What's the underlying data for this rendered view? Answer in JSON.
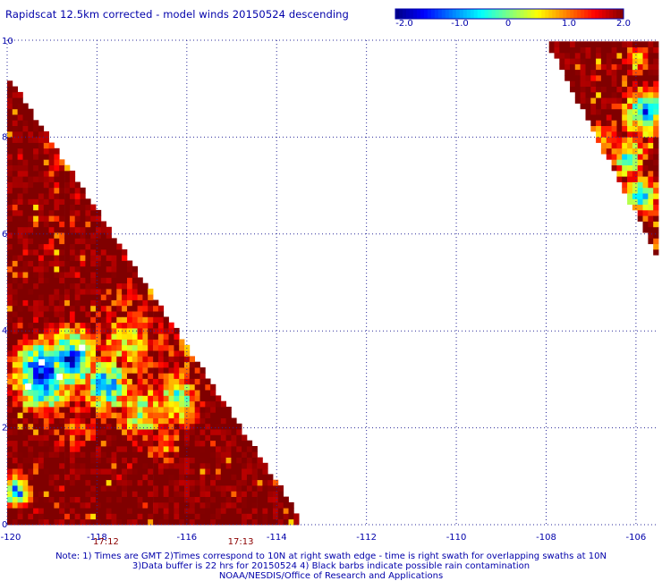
{
  "title": "Rapidscat 12.5km corrected - model winds 20150524 descending",
  "colorbar": {
    "ticks": [
      -2.0,
      -1.0,
      0,
      1.0,
      2.0
    ],
    "tick_labels": [
      "-2.0",
      "-1.0",
      "0",
      "1.0",
      "2.0"
    ],
    "colors": [
      "#000080",
      "#0000ff",
      "#0080ff",
      "#00ffff",
      "#80ff80",
      "#ffff00",
      "#ff8000",
      "#ff0000",
      "#800000"
    ]
  },
  "chart_data": {
    "type": "heatmap",
    "title": "Rapidscat 12.5km corrected - model winds 20150524 descending",
    "x_tick_labels": [
      "-120",
      "-118",
      "-116",
      "-114",
      "-112",
      "-110",
      "-108",
      "-106"
    ],
    "y_tick_labels": [
      "0",
      "2",
      "4",
      "6",
      "8",
      "10"
    ],
    "xlim": [
      -120,
      -105.5
    ],
    "ylim": [
      0,
      10
    ],
    "grid": true,
    "colorbar_range": [
      -2.0,
      2.0
    ],
    "time_labels": [
      {
        "text": "17:12",
        "lon": -117.8
      },
      {
        "text": "17:13",
        "lon": -114.8
      }
    ],
    "swaths": [
      {
        "description_lon_range": [
          -120,
          -113.5
        ],
        "lat_range": [
          0,
          9.3
        ],
        "edge_polygon": [
          [
            -120,
            0
          ],
          [
            -113.5,
            0
          ],
          [
            -113.5,
            0.2
          ],
          [
            -120,
            9.3
          ]
        ],
        "regions": [
          {
            "center": [
              -119.2,
              3.1
            ],
            "radius": 0.9,
            "value": -2.0
          },
          {
            "center": [
              -118.6,
              3.4
            ],
            "radius": 0.8,
            "value": -1.6
          },
          {
            "center": [
              -117.8,
              2.9
            ],
            "radius": 0.7,
            "value": -1.2
          },
          {
            "center": [
              -117.3,
              3.8
            ],
            "radius": 0.9,
            "value": 0.4
          },
          {
            "center": [
              -117.0,
              2.3
            ],
            "radius": 0.7,
            "value": 0.0
          },
          {
            "center": [
              -116.2,
              2.6
            ],
            "radius": 0.6,
            "value": -0.4
          },
          {
            "center": [
              -116.0,
              3.6
            ],
            "radius": 0.6,
            "value": 1.2
          },
          {
            "center": [
              -116.5,
              1.7
            ],
            "radius": 0.5,
            "value": 1.0
          },
          {
            "center": [
              -118.5,
              2.0
            ],
            "radius": 0.5,
            "value": 1.0
          },
          {
            "center": [
              -119.8,
              0.7
            ],
            "radius": 0.4,
            "value": -1.5
          },
          {
            "center": [
              -117.5,
              4.6
            ],
            "radius": 0.5,
            "value": 1.4
          },
          {
            "center": [
              -118.9,
              6.0
            ],
            "radius": 0.3,
            "value": 1.3
          },
          {
            "center": [
              -119.0,
              7.5
            ],
            "radius": 0.3,
            "value": 1.2
          }
        ],
        "background_value": 2.0
      },
      {
        "description_lon_range": [
          -108.0,
          -105.5
        ],
        "lat_range": [
          5.5,
          10
        ],
        "edge_polygon": [
          [
            -108.0,
            10
          ],
          [
            -105.5,
            10
          ],
          [
            -105.5,
            5.5
          ]
        ],
        "regions": [
          {
            "center": [
              -105.8,
              8.5
            ],
            "radius": 0.6,
            "value": -1.2
          },
          {
            "center": [
              -106.2,
              7.6
            ],
            "radius": 0.5,
            "value": -0.5
          },
          {
            "center": [
              -105.9,
              6.8
            ],
            "radius": 0.5,
            "value": -0.8
          },
          {
            "center": [
              -106.7,
              8.0
            ],
            "radius": 0.4,
            "value": 0.5
          },
          {
            "center": [
              -106.0,
              9.6
            ],
            "radius": 0.3,
            "value": 0.0
          }
        ],
        "background_value": 2.0
      }
    ]
  },
  "notes": [
    "Note: 1) Times are GMT 2)Times correspond to 10N at right swath edge - time is right swath for overlapping swaths at 10N",
    "3)Data buffer is 22 hrs for 20150524 4) Black barbs indicate possible rain contamination",
    "NOAA/NESDIS/Office of Research and Applications"
  ]
}
